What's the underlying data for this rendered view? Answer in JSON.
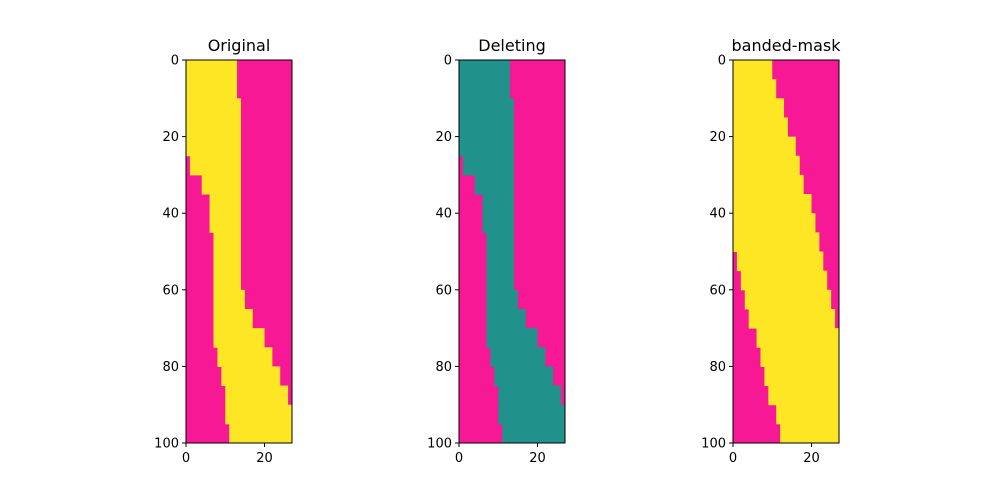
{
  "colors": {
    "background": "#f71895",
    "original": "#fde725",
    "deleting": "#21918c",
    "mask": "#fde725"
  },
  "chart_data": [
    {
      "type": "heatmap",
      "title": "Original",
      "xlim": [
        0,
        27
      ],
      "ylim": [
        100,
        0
      ],
      "x_ticks": [
        "0",
        "20"
      ],
      "y_ticks": [
        "0",
        "20",
        "40",
        "60",
        "80",
        "100"
      ],
      "region_color": "#fde725",
      "rows": [
        {
          "y": 0,
          "x0": 0,
          "x1": 13
        },
        {
          "y": 5,
          "x0": 0,
          "x1": 13
        },
        {
          "y": 10,
          "x0": 0,
          "x1": 14
        },
        {
          "y": 15,
          "x0": 0,
          "x1": 14
        },
        {
          "y": 20,
          "x0": 0,
          "x1": 14
        },
        {
          "y": 25,
          "x0": 1,
          "x1": 14
        },
        {
          "y": 30,
          "x0": 4,
          "x1": 14
        },
        {
          "y": 35,
          "x0": 6,
          "x1": 14
        },
        {
          "y": 40,
          "x0": 6,
          "x1": 14
        },
        {
          "y": 45,
          "x0": 7,
          "x1": 14
        },
        {
          "y": 50,
          "x0": 7,
          "x1": 14
        },
        {
          "y": 55,
          "x0": 7,
          "x1": 14
        },
        {
          "y": 60,
          "x0": 7,
          "x1": 15
        },
        {
          "y": 65,
          "x0": 7,
          "x1": 17
        },
        {
          "y": 70,
          "x0": 7,
          "x1": 20
        },
        {
          "y": 75,
          "x0": 8,
          "x1": 22
        },
        {
          "y": 80,
          "x0": 9,
          "x1": 24
        },
        {
          "y": 85,
          "x0": 10,
          "x1": 26
        },
        {
          "y": 90,
          "x0": 10,
          "x1": 27
        },
        {
          "y": 95,
          "x0": 11,
          "x1": 27
        },
        {
          "y": 100,
          "x0": 12,
          "x1": 27
        }
      ]
    },
    {
      "type": "heatmap",
      "title": "Deleting",
      "xlim": [
        0,
        27
      ],
      "ylim": [
        100,
        0
      ],
      "x_ticks": [
        "0",
        "20"
      ],
      "y_ticks": [
        "0",
        "20",
        "40",
        "60",
        "80",
        "100"
      ],
      "region_color": "#21918c",
      "rows": [
        {
          "y": 0,
          "x0": 0,
          "x1": 13
        },
        {
          "y": 5,
          "x0": 0,
          "x1": 13
        },
        {
          "y": 10,
          "x0": 0,
          "x1": 14
        },
        {
          "y": 15,
          "x0": 0,
          "x1": 14
        },
        {
          "y": 20,
          "x0": 0,
          "x1": 14
        },
        {
          "y": 25,
          "x0": 1,
          "x1": 14
        },
        {
          "y": 30,
          "x0": 4,
          "x1": 14
        },
        {
          "y": 35,
          "x0": 6,
          "x1": 14
        },
        {
          "y": 40,
          "x0": 6,
          "x1": 14
        },
        {
          "y": 45,
          "x0": 7,
          "x1": 14
        },
        {
          "y": 50,
          "x0": 7,
          "x1": 14
        },
        {
          "y": 55,
          "x0": 7,
          "x1": 14
        },
        {
          "y": 60,
          "x0": 7,
          "x1": 15
        },
        {
          "y": 65,
          "x0": 7,
          "x1": 17
        },
        {
          "y": 70,
          "x0": 7,
          "x1": 20
        },
        {
          "y": 75,
          "x0": 8,
          "x1": 22
        },
        {
          "y": 80,
          "x0": 9,
          "x1": 24
        },
        {
          "y": 85,
          "x0": 10,
          "x1": 26
        },
        {
          "y": 90,
          "x0": 10,
          "x1": 27
        },
        {
          "y": 95,
          "x0": 11,
          "x1": 27
        },
        {
          "y": 100,
          "x0": 12,
          "x1": 27
        }
      ]
    },
    {
      "type": "heatmap",
      "title": "banded-mask",
      "xlim": [
        0,
        27
      ],
      "ylim": [
        100,
        0
      ],
      "x_ticks": [
        "0",
        "20"
      ],
      "y_ticks": [
        "0",
        "20",
        "40",
        "60",
        "80",
        "100"
      ],
      "region_color": "#fde725",
      "rows": [
        {
          "y": 0,
          "x0": 0,
          "x1": 10
        },
        {
          "y": 5,
          "x0": 0,
          "x1": 11
        },
        {
          "y": 10,
          "x0": 0,
          "x1": 13
        },
        {
          "y": 15,
          "x0": 0,
          "x1": 14
        },
        {
          "y": 20,
          "x0": 0,
          "x1": 16
        },
        {
          "y": 25,
          "x0": 0,
          "x1": 17
        },
        {
          "y": 30,
          "x0": 0,
          "x1": 18
        },
        {
          "y": 35,
          "x0": 0,
          "x1": 20
        },
        {
          "y": 40,
          "x0": 0,
          "x1": 21
        },
        {
          "y": 45,
          "x0": 0,
          "x1": 22
        },
        {
          "y": 50,
          "x0": 1,
          "x1": 23
        },
        {
          "y": 55,
          "x0": 2,
          "x1": 24
        },
        {
          "y": 60,
          "x0": 3,
          "x1": 25
        },
        {
          "y": 65,
          "x0": 4,
          "x1": 26
        },
        {
          "y": 70,
          "x0": 6,
          "x1": 27
        },
        {
          "y": 75,
          "x0": 7,
          "x1": 27
        },
        {
          "y": 80,
          "x0": 8,
          "x1": 27
        },
        {
          "y": 85,
          "x0": 9,
          "x1": 27
        },
        {
          "y": 90,
          "x0": 11,
          "x1": 27
        },
        {
          "y": 95,
          "x0": 12,
          "x1": 27
        },
        {
          "y": 100,
          "x0": 13,
          "x1": 27
        }
      ]
    }
  ]
}
